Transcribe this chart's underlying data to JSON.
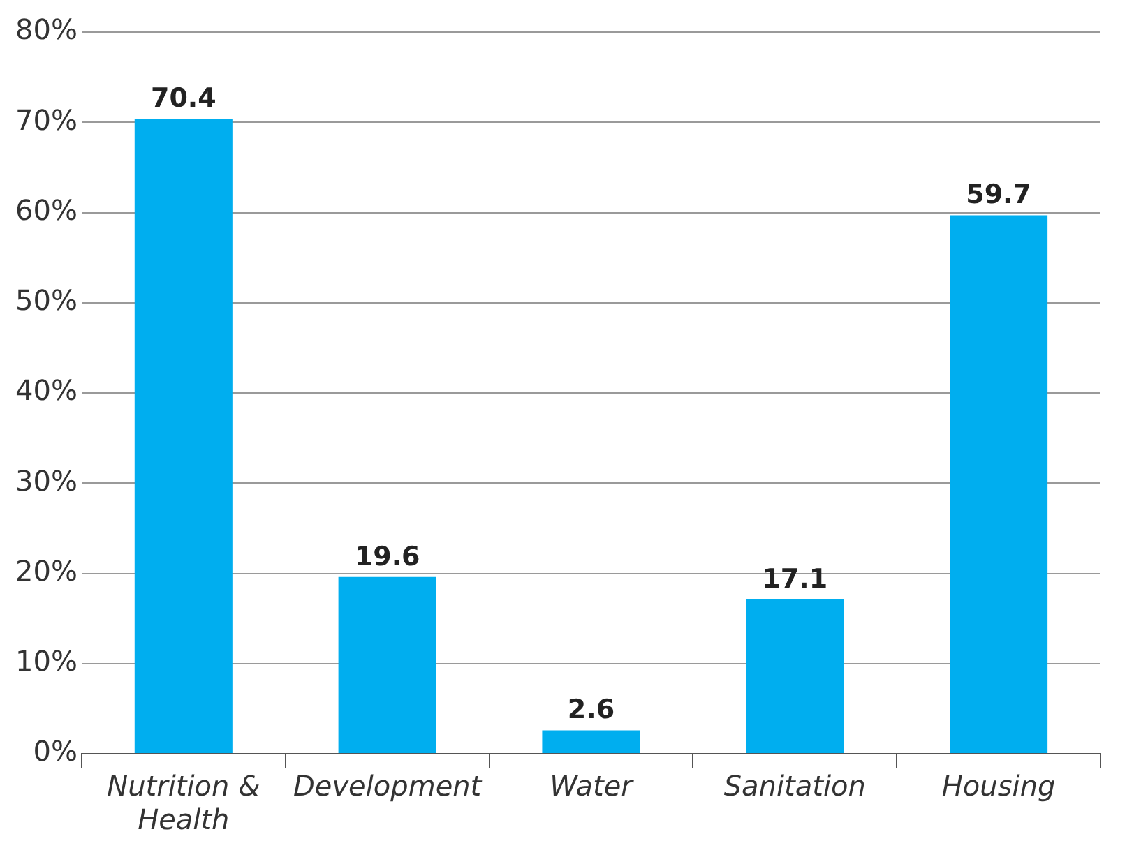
{
  "chart_data": {
    "type": "bar",
    "categories": [
      "Nutrition & Health",
      "Development",
      "Water",
      "Sanitation",
      "Housing"
    ],
    "values": [
      70.4,
      19.6,
      2.6,
      17.1,
      59.7
    ],
    "color": "#00aeef",
    "ylim": [
      0,
      80
    ],
    "yticks": [
      {
        "value": 0,
        "label": "0%"
      },
      {
        "value": 10,
        "label": "10%"
      },
      {
        "value": 20,
        "label": "20%"
      },
      {
        "value": 30,
        "label": "30%"
      },
      {
        "value": 40,
        "label": "40%"
      },
      {
        "value": 50,
        "label": "50%"
      },
      {
        "value": 60,
        "label": "60%"
      },
      {
        "value": 70,
        "label": "70%"
      },
      {
        "value": 80,
        "label": "80%"
      }
    ],
    "grid": "y",
    "data_labels": true,
    "legend": false
  }
}
